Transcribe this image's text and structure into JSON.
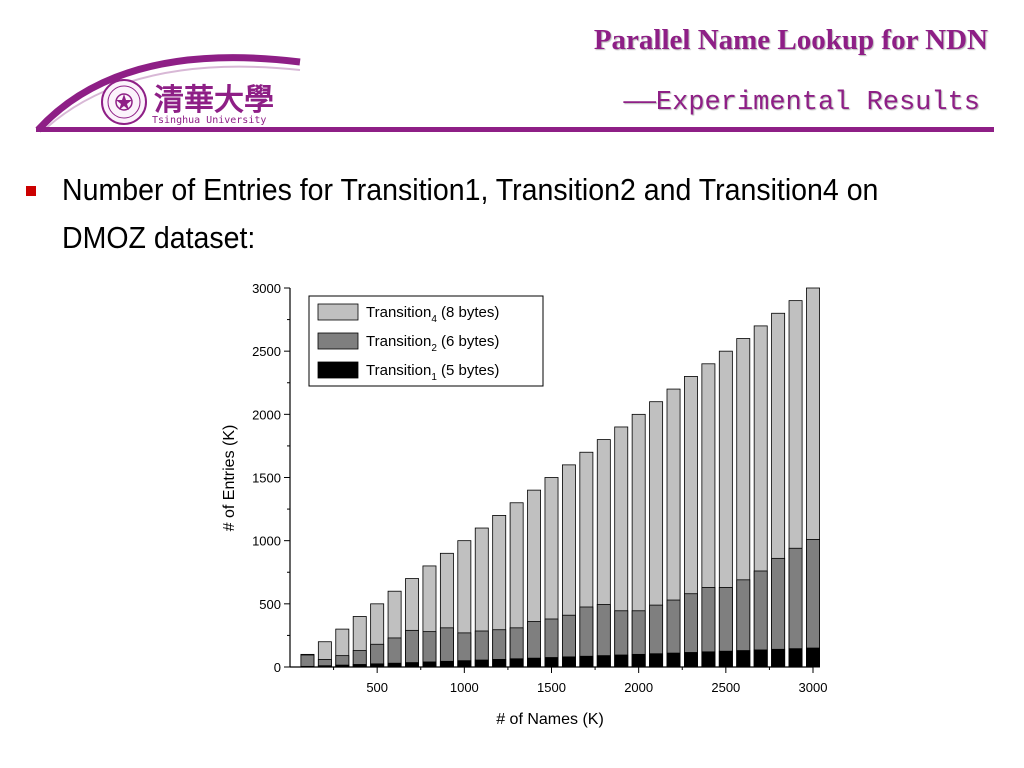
{
  "header": {
    "title": "Parallel Name Lookup for NDN",
    "subtitle": "——Experimental Results",
    "logo_cn": "清華大學",
    "logo_en": "Tsinghua University",
    "accent_color": "#8e1f86"
  },
  "content": {
    "bullet_color": "#cc0000",
    "bullet_text": "Number of Entries for Transition1, Transition2 and Transition4 on DMOZ dataset:"
  },
  "chart_data": {
    "type": "bar",
    "stacked": true,
    "xlabel": "# of Names (K)",
    "ylabel": "# of Entries (K)",
    "xlim": [
      0,
      3000
    ],
    "ylim": [
      0,
      3000
    ],
    "x": [
      100,
      200,
      300,
      400,
      500,
      600,
      700,
      800,
      900,
      1000,
      1100,
      1200,
      1300,
      1400,
      1500,
      1600,
      1700,
      1800,
      1900,
      2000,
      2100,
      2200,
      2300,
      2400,
      2500,
      2600,
      2700,
      2800,
      2900,
      3000
    ],
    "x_ticks": [
      500,
      1000,
      1500,
      2000,
      2500,
      3000
    ],
    "y_ticks": [
      0,
      500,
      1000,
      1500,
      2000,
      2500,
      3000
    ],
    "legend_position": "top-left",
    "series": [
      {
        "name": "Transition",
        "subscript": "1",
        "suffix": " (5 bytes)",
        "color": "#000000",
        "values": [
          5,
          10,
          15,
          20,
          25,
          30,
          35,
          40,
          45,
          50,
          55,
          60,
          65,
          70,
          75,
          80,
          85,
          90,
          95,
          100,
          105,
          110,
          115,
          120,
          125,
          130,
          135,
          140,
          145,
          150
        ]
      },
      {
        "name": "Transition",
        "subscript": "2",
        "suffix": " (6 bytes)",
        "color": "#7f7f7f",
        "cumulative_values": [
          95,
          60,
          90,
          130,
          180,
          230,
          290,
          280,
          310,
          270,
          285,
          295,
          310,
          360,
          380,
          410,
          475,
          495,
          445,
          445,
          490,
          530,
          580,
          630,
          630,
          690,
          760,
          860,
          940,
          1010
        ]
      },
      {
        "name": "Transition",
        "subscript": "4",
        "suffix": " (8 bytes)",
        "color": "#c0c0c0",
        "cumulative_values": [
          100,
          200,
          300,
          400,
          500,
          600,
          700,
          800,
          900,
          1000,
          1100,
          1200,
          1300,
          1400,
          1500,
          1600,
          1700,
          1800,
          1900,
          2000,
          2100,
          2200,
          2300,
          2400,
          2500,
          2600,
          2700,
          2800,
          2900,
          3000
        ]
      }
    ]
  }
}
